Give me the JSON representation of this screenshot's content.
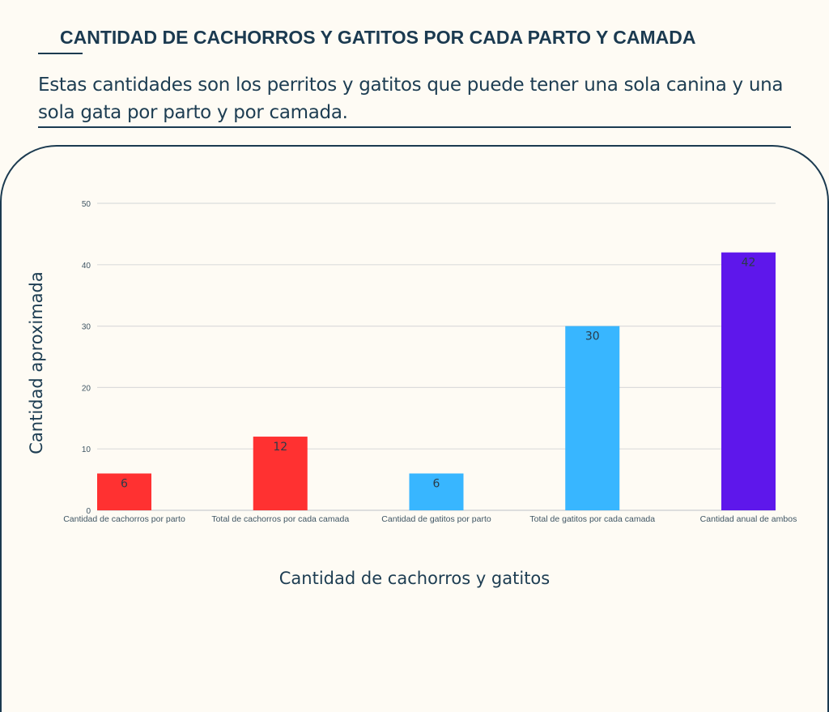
{
  "header": {
    "title": "CANTIDAD DE CACHORROS Y GATITOS POR CADA PARTO Y CAMADA",
    "subtitle": "Estas cantidades son los perritos y gatitos que puede tener una sola canina y una sola gata por parto y por camada."
  },
  "chart_data": {
    "type": "bar",
    "title": "",
    "xlabel": "Cantidad de cachorros y gatitos",
    "ylabel": "Cantidad aproximada",
    "categories": [
      "Cantidad de cachorros por parto",
      "Total de cachorros por cada camada",
      "Cantidad de gatitos por parto",
      "Total de gatitos por cada camada",
      "Cantidad anual de ambos"
    ],
    "values": [
      6,
      12,
      6,
      30,
      42
    ],
    "colors": [
      "#ff3131",
      "#ff3131",
      "#38b6ff",
      "#38b6ff",
      "#5e17eb"
    ],
    "ylim": [
      0,
      50
    ],
    "yticks": [
      0,
      10,
      20,
      30,
      40,
      50
    ],
    "grid": true,
    "legend": "none",
    "data_labels": true
  }
}
